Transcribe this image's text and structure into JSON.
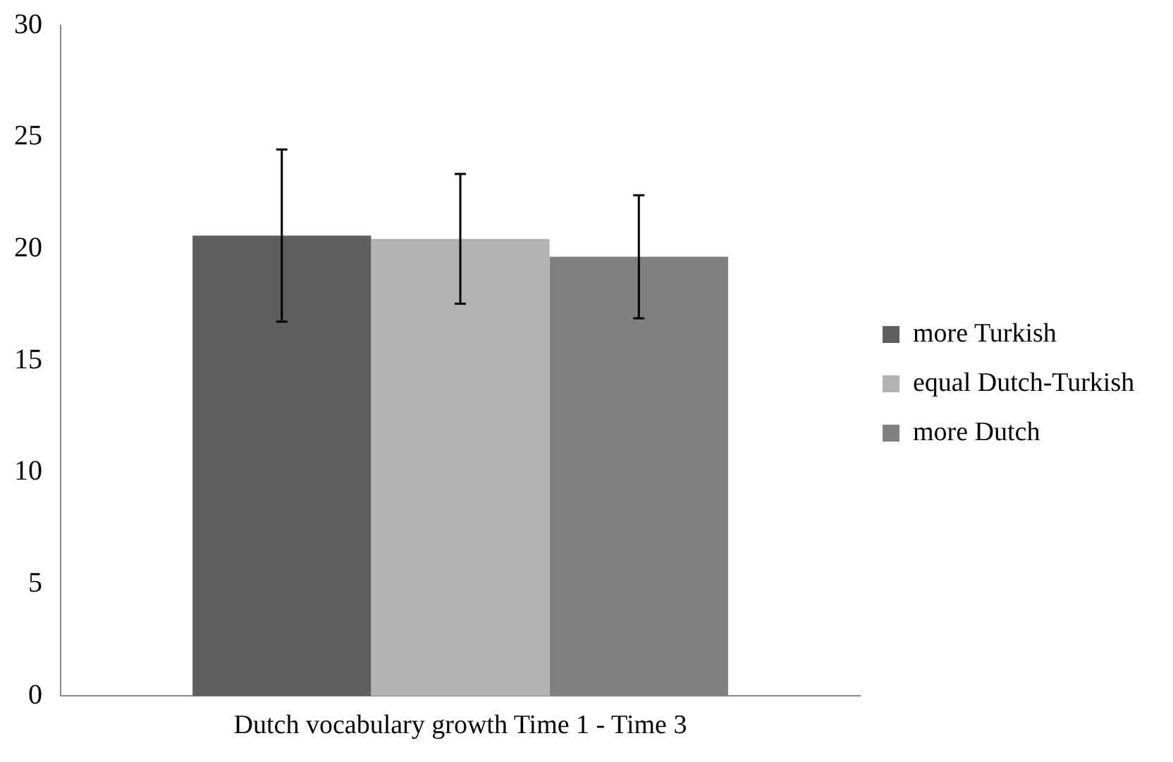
{
  "chart_data": {
    "type": "bar",
    "categories": [
      "Dutch vocabulary growth Time 1 - Time 3"
    ],
    "series": [
      {
        "name": "more Turkish",
        "color": "#5f5f5f",
        "values": [
          20.6
        ],
        "errors": [
          3.85
        ]
      },
      {
        "name": "equal Dutch-Turkish",
        "color": "#b2b2b2",
        "values": [
          20.45
        ],
        "errors": [
          2.9
        ]
      },
      {
        "name": "more Dutch",
        "color": "#808080",
        "values": [
          19.65
        ],
        "errors": [
          2.75
        ]
      }
    ],
    "ylim": [
      0,
      30
    ],
    "yticks": [
      0,
      5,
      10,
      15,
      20,
      25,
      30
    ],
    "grid": false,
    "legend": "right"
  }
}
